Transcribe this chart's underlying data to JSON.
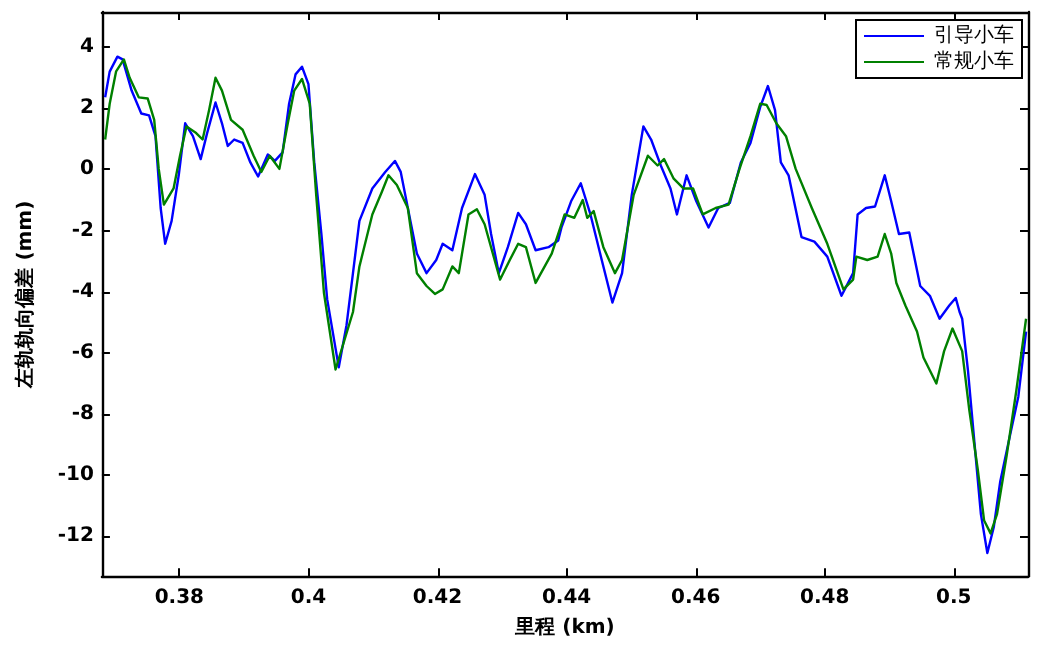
{
  "chart_data": {
    "type": "line",
    "xlabel": "里程 (km)",
    "ylabel": "左轨轨向偏差 (mm)",
    "xlim": [
      0.368,
      0.5115
    ],
    "xticks": [
      0.38,
      0.4,
      0.42,
      0.44,
      0.46,
      0.48,
      0.5
    ],
    "ylim": [
      -13.3,
      5.15
    ],
    "yticks": [
      -12,
      -10,
      -8,
      -6,
      -4,
      -2,
      0,
      2,
      4
    ],
    "grid": false,
    "legend": "top right",
    "marker": "none",
    "line_style": "solid",
    "series": [
      {
        "name": "引导小车",
        "color": "#0000ff",
        "x": [
          0.3685,
          0.3692,
          0.3704,
          0.3712,
          0.3726,
          0.3741,
          0.3753,
          0.3763,
          0.3771,
          0.3778,
          0.3788,
          0.3799,
          0.3809,
          0.3821,
          0.3833,
          0.3843,
          0.3856,
          0.3866,
          0.3875,
          0.3885,
          0.3898,
          0.391,
          0.3922,
          0.3937,
          0.3948,
          0.396,
          0.397,
          0.398,
          0.399,
          0.4,
          0.4009,
          0.402,
          0.4029,
          0.4047,
          0.4059,
          0.4069,
          0.4079,
          0.4099,
          0.4119,
          0.4134,
          0.4143,
          0.4158,
          0.4168,
          0.4183,
          0.4198,
          0.4208,
          0.4223,
          0.4238,
          0.4258,
          0.4273,
          0.4283,
          0.4295,
          0.4309,
          0.4325,
          0.4337,
          0.4352,
          0.4372,
          0.4387,
          0.4392,
          0.4407,
          0.4422,
          0.4437,
          0.4452,
          0.4471,
          0.4486,
          0.4501,
          0.4519,
          0.4531,
          0.4546,
          0.4561,
          0.4571,
          0.4586,
          0.4601,
          0.462,
          0.4635,
          0.4653,
          0.467,
          0.4685,
          0.47,
          0.4712,
          0.4723,
          0.4732,
          0.4744,
          0.4764,
          0.4784,
          0.4804,
          0.4826,
          0.4844,
          0.4851,
          0.4864,
          0.4878,
          0.4893,
          0.4903,
          0.4915,
          0.4931,
          0.4948,
          0.4963,
          0.4978,
          0.4993,
          0.5003,
          0.5009,
          0.5013,
          0.5022,
          0.5032,
          0.5042,
          0.5052,
          0.5062,
          0.5072,
          0.5087,
          0.51,
          0.5112
        ],
        "values": [
          2.36,
          3.2,
          3.69,
          3.6,
          2.58,
          1.83,
          1.77,
          1.09,
          -1.26,
          -2.43,
          -1.68,
          -0.19,
          1.51,
          1.09,
          0.34,
          1.19,
          2.19,
          1.51,
          0.77,
          0.98,
          0.87,
          0.23,
          -0.23,
          0.49,
          0.28,
          0.56,
          2.15,
          3.11,
          3.36,
          2.79,
          0.23,
          -2.1,
          -4.24,
          -6.47,
          -5.09,
          -3.39,
          -1.68,
          -0.62,
          -0.08,
          0.28,
          -0.08,
          -1.68,
          -2.75,
          -3.39,
          -2.96,
          -2.43,
          -2.64,
          -1.26,
          -0.15,
          -0.83,
          -2.11,
          -3.39,
          -2.54,
          -1.42,
          -1.79,
          -2.64,
          -2.54,
          -2.32,
          -1.9,
          -1.04,
          -0.45,
          -1.47,
          -2.75,
          -4.35,
          -3.39,
          -0.83,
          1.41,
          0.98,
          0.13,
          -0.62,
          -1.47,
          -0.19,
          -1.04,
          -1.9,
          -1.26,
          -1.09,
          0.23,
          0.87,
          2.04,
          2.73,
          1.94,
          0.23,
          -0.19,
          -2.21,
          -2.36,
          -2.85,
          -4.13,
          -3.39,
          -1.47,
          -1.26,
          -1.21,
          -0.19,
          -1.04,
          -2.11,
          -2.06,
          -3.81,
          -4.13,
          -4.88,
          -4.45,
          -4.2,
          -4.66,
          -4.88,
          -6.58,
          -8.93,
          -11.27,
          -12.54,
          -11.69,
          -10.2,
          -8.71,
          -7.43,
          -5.3
        ]
      },
      {
        "name": "常规小车",
        "color": "#008000",
        "x": [
          0.3685,
          0.3692,
          0.3702,
          0.3714,
          0.3723,
          0.3737,
          0.3751,
          0.3761,
          0.3768,
          0.3776,
          0.3791,
          0.3801,
          0.3811,
          0.3826,
          0.3836,
          0.3846,
          0.3856,
          0.3866,
          0.388,
          0.3898,
          0.3915,
          0.3927,
          0.394,
          0.3955,
          0.3968,
          0.3978,
          0.399,
          0.4002,
          0.4012,
          0.4024,
          0.4042,
          0.4069,
          0.4079,
          0.4099,
          0.4114,
          0.4124,
          0.4137,
          0.4154,
          0.4168,
          0.4183,
          0.4196,
          0.4208,
          0.4223,
          0.4233,
          0.4248,
          0.4261,
          0.4273,
          0.4297,
          0.4312,
          0.4325,
          0.4337,
          0.4352,
          0.4377,
          0.4397,
          0.4412,
          0.4425,
          0.4432,
          0.4442,
          0.4457,
          0.4475,
          0.4486,
          0.4504,
          0.4526,
          0.4541,
          0.4551,
          0.4566,
          0.4581,
          0.4596,
          0.4611,
          0.4631,
          0.4651,
          0.4668,
          0.4685,
          0.47,
          0.471,
          0.4725,
          0.474,
          0.4755,
          0.478,
          0.4804,
          0.4829,
          0.4844,
          0.4849,
          0.4866,
          0.4882,
          0.4893,
          0.4903,
          0.4911,
          0.4925,
          0.4943,
          0.4953,
          0.4973,
          0.4985,
          0.4998,
          0.5013,
          0.5024,
          0.5037,
          0.5047,
          0.5057,
          0.5067,
          0.5082,
          0.5097,
          0.5112
        ],
        "values": [
          0.98,
          2.15,
          3.21,
          3.6,
          3.0,
          2.36,
          2.32,
          1.62,
          0.02,
          -1.15,
          -0.62,
          0.45,
          1.41,
          1.19,
          0.98,
          1.94,
          3.0,
          2.58,
          1.62,
          1.3,
          0.45,
          -0.08,
          0.45,
          0.02,
          1.51,
          2.58,
          2.96,
          2.15,
          -0.83,
          -4.03,
          -6.54,
          -4.66,
          -3.17,
          -1.47,
          -0.72,
          -0.19,
          -0.51,
          -1.26,
          -3.39,
          -3.81,
          -4.07,
          -3.92,
          -3.17,
          -3.39,
          -1.47,
          -1.3,
          -1.79,
          -3.6,
          -2.96,
          -2.43,
          -2.54,
          -3.71,
          -2.75,
          -1.47,
          -1.58,
          -1.0,
          -1.58,
          -1.36,
          -2.54,
          -3.39,
          -2.96,
          -0.83,
          0.45,
          0.13,
          0.34,
          -0.3,
          -0.62,
          -0.62,
          -1.47,
          -1.26,
          -1.15,
          0.02,
          1.09,
          2.15,
          2.11,
          1.51,
          1.09,
          0.02,
          -1.26,
          -2.43,
          -3.92,
          -3.6,
          -2.85,
          -2.96,
          -2.85,
          -2.11,
          -2.75,
          -3.71,
          -4.45,
          -5.3,
          -6.15,
          -7.0,
          -5.94,
          -5.2,
          -5.94,
          -7.86,
          -9.78,
          -11.48,
          -11.9,
          -11.27,
          -9.35,
          -7.22,
          -4.88
        ]
      }
    ]
  }
}
